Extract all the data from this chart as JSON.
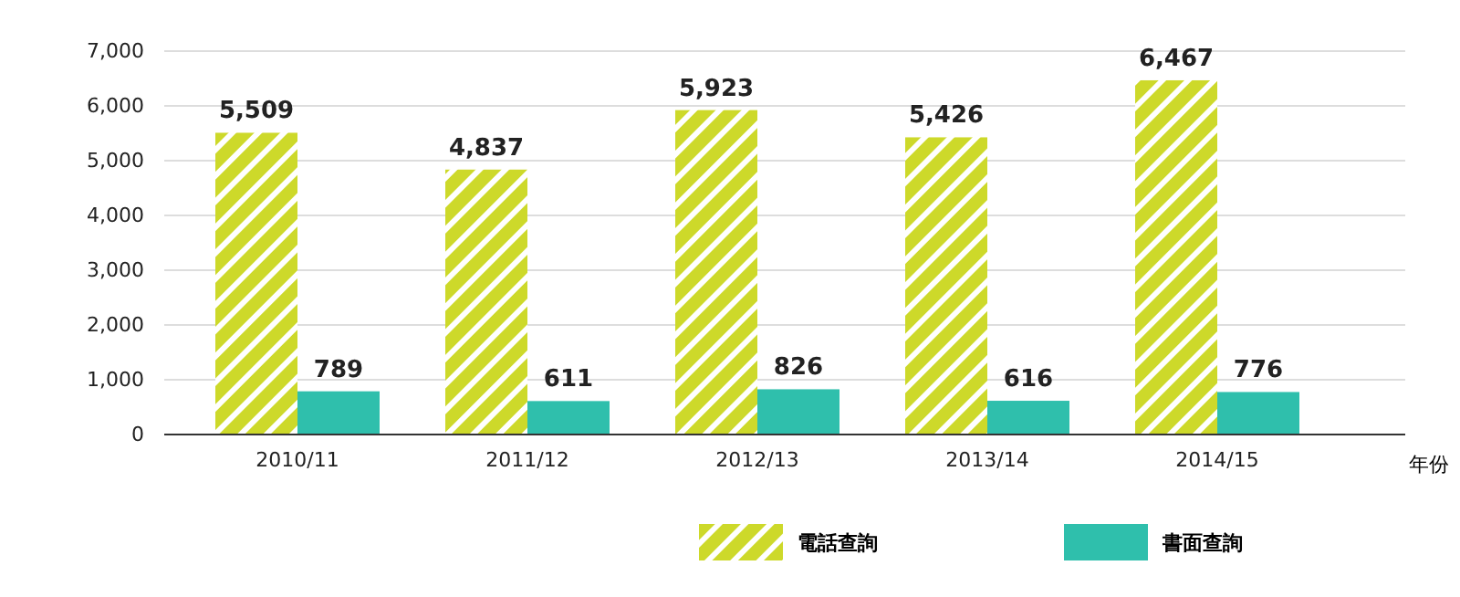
{
  "chart_data": {
    "type": "bar",
    "xlabel": "年份",
    "categories": [
      "2010/11",
      "2011/12",
      "2012/13",
      "2013/14",
      "2014/15"
    ],
    "series": [
      {
        "name": "電話查詢",
        "color": "#cdd92a",
        "values": [
          5509,
          4837,
          5923,
          5426,
          6467
        ],
        "value_labels": [
          "5,509",
          "4,837",
          "5,923",
          "5,426",
          "6,467"
        ]
      },
      {
        "name": "書面查詢",
        "color": "#2fbfac",
        "values": [
          789,
          611,
          826,
          616,
          776
        ],
        "value_labels": [
          "789",
          "611",
          "826",
          "616",
          "776"
        ]
      }
    ],
    "ylim": [
      0,
      7000
    ],
    "yticks": [
      {
        "value": 0,
        "label": "0"
      },
      {
        "value": 1000,
        "label": "1,000"
      },
      {
        "value": 2000,
        "label": "2,000"
      },
      {
        "value": 3000,
        "label": "3,000"
      },
      {
        "value": 4000,
        "label": "4,000"
      },
      {
        "value": 5000,
        "label": "5,000"
      },
      {
        "value": 6000,
        "label": "6,000"
      },
      {
        "value": 7000,
        "label": "7,000"
      }
    ],
    "grid": "y",
    "legend": "bottom"
  }
}
